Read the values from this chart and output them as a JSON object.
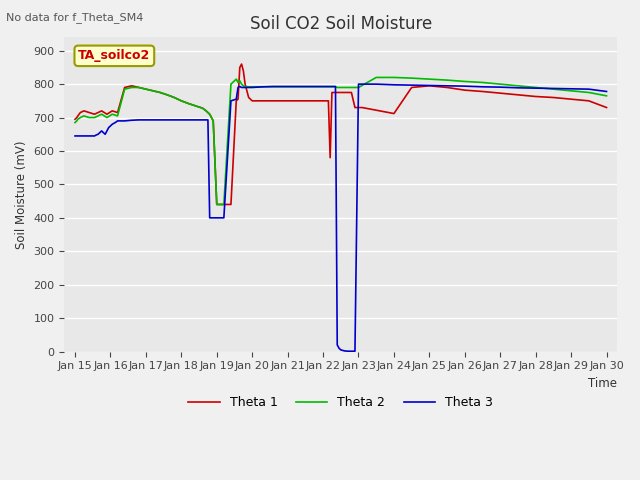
{
  "title": "Soil CO2 Soil Moisture",
  "subtitle": "No data for f_Theta_SM4",
  "ylabel": "Soil Moisture (mV)",
  "xlabel": "Time",
  "box_label": "TA_soilco2",
  "ylim": [
    0,
    940
  ],
  "yticks": [
    0,
    100,
    200,
    300,
    400,
    500,
    600,
    700,
    800,
    900
  ],
  "xtick_labels": [
    "Jan 15",
    "Jan 16",
    "Jan 17",
    "Jan 18",
    "Jan 19",
    "Jan 20",
    "Jan 21",
    "Jan 22",
    "Jan 23",
    "Jan 24",
    "Jan 25",
    "Jan 26",
    "Jan 27",
    "Jan 28",
    "Jan 29",
    "Jan 30"
  ],
  "line_colors": [
    "#cc0000",
    "#00bb00",
    "#0000cc"
  ],
  "line_labels": [
    "Theta 1",
    "Theta 2",
    "Theta 3"
  ],
  "theta1_x": [
    0.0,
    0.05,
    0.08,
    0.15,
    0.25,
    0.4,
    0.55,
    0.75,
    0.9,
    1.05,
    1.2,
    1.4,
    1.6,
    1.8,
    2.0,
    2.2,
    2.4,
    2.6,
    2.8,
    3.0,
    3.2,
    3.4,
    3.6,
    3.7,
    3.75,
    3.8,
    3.85,
    3.9,
    4.0,
    4.2,
    4.4,
    4.55,
    4.6,
    4.65,
    4.7,
    4.75,
    4.8,
    4.9,
    5.0,
    5.3,
    5.6,
    5.9,
    6.2,
    6.5,
    6.8,
    7.0,
    7.1,
    7.15,
    7.2,
    7.25,
    7.3,
    7.35,
    7.4,
    7.45,
    7.5,
    7.6,
    7.7,
    7.8,
    7.9,
    8.0,
    8.1,
    8.2,
    8.3,
    8.4,
    8.5,
    8.6,
    8.7,
    8.8,
    8.9,
    9.0,
    9.5,
    10.0,
    10.5,
    11.0,
    11.5,
    12.0,
    12.5,
    13.0,
    13.5,
    14.0,
    14.5,
    15.0
  ],
  "theta1_y": [
    695,
    700,
    705,
    715,
    720,
    715,
    710,
    720,
    710,
    720,
    715,
    790,
    795,
    790,
    785,
    780,
    775,
    768,
    760,
    750,
    742,
    735,
    728,
    720,
    715,
    710,
    700,
    690,
    440,
    440,
    440,
    750,
    755,
    850,
    860,
    840,
    800,
    760,
    750,
    750,
    750,
    750,
    750,
    750,
    750,
    750,
    750,
    750,
    580,
    775,
    775,
    775,
    775,
    775,
    775,
    775,
    775,
    775,
    730,
    730,
    730,
    728,
    726,
    724,
    722,
    720,
    718,
    716,
    714,
    712,
    790,
    795,
    790,
    782,
    778,
    773,
    768,
    763,
    760,
    755,
    750,
    730
  ],
  "theta2_x": [
    0.0,
    0.05,
    0.08,
    0.15,
    0.25,
    0.4,
    0.55,
    0.75,
    0.9,
    1.05,
    1.2,
    1.4,
    1.6,
    1.8,
    2.0,
    2.2,
    2.4,
    2.6,
    2.8,
    3.0,
    3.2,
    3.4,
    3.6,
    3.7,
    3.75,
    3.8,
    3.85,
    3.9,
    4.0,
    4.2,
    4.4,
    4.5,
    4.55,
    4.6,
    4.65,
    4.7,
    4.75,
    4.8,
    4.9,
    5.0,
    5.3,
    5.6,
    5.9,
    6.2,
    6.5,
    6.8,
    7.0,
    7.1,
    7.15,
    7.2,
    7.25,
    7.3,
    7.35,
    7.4,
    7.45,
    7.5,
    7.6,
    7.7,
    7.8,
    7.9,
    8.0,
    8.5,
    9.0,
    9.5,
    10.0,
    10.5,
    11.0,
    11.5,
    12.0,
    12.5,
    13.0,
    13.5,
    14.0,
    14.5,
    15.0
  ],
  "theta2_y": [
    685,
    690,
    695,
    700,
    705,
    700,
    700,
    710,
    700,
    710,
    705,
    785,
    790,
    790,
    785,
    780,
    775,
    768,
    760,
    750,
    742,
    735,
    728,
    720,
    715,
    710,
    700,
    690,
    440,
    440,
    800,
    810,
    815,
    805,
    810,
    800,
    795,
    793,
    792,
    792,
    792,
    792,
    792,
    792,
    792,
    792,
    792,
    792,
    792,
    792,
    792,
    792,
    792,
    790,
    790,
    790,
    790,
    790,
    790,
    790,
    790,
    820,
    820,
    818,
    815,
    812,
    808,
    805,
    800,
    795,
    790,
    785,
    780,
    775,
    765
  ],
  "theta3_x": [
    0.0,
    0.05,
    0.08,
    0.1,
    0.15,
    0.2,
    0.25,
    0.3,
    0.35,
    0.4,
    0.45,
    0.5,
    0.55,
    0.6,
    0.65,
    0.7,
    0.75,
    0.8,
    0.85,
    0.9,
    0.95,
    1.0,
    1.05,
    1.1,
    1.15,
    1.2,
    1.4,
    1.6,
    1.8,
    2.0,
    2.2,
    2.4,
    2.6,
    2.8,
    3.0,
    3.2,
    3.4,
    3.6,
    3.7,
    3.75,
    3.8,
    4.0,
    4.2,
    4.4,
    4.55,
    4.6,
    4.65,
    4.7,
    4.8,
    4.9,
    5.0,
    5.3,
    5.6,
    5.9,
    6.2,
    6.5,
    6.8,
    7.0,
    7.1,
    7.15,
    7.2,
    7.25,
    7.3,
    7.35,
    7.4,
    7.45,
    7.5,
    7.6,
    7.7,
    7.8,
    7.9,
    8.0,
    8.1,
    8.15,
    8.2,
    8.3,
    8.4,
    8.5,
    9.0,
    9.5,
    10.0,
    10.5,
    11.0,
    11.5,
    12.0,
    12.5,
    13.0,
    13.5,
    14.0,
    14.5,
    15.0
  ],
  "theta3_y": [
    645,
    645,
    645,
    645,
    645,
    645,
    645,
    645,
    645,
    645,
    645,
    645,
    645,
    648,
    650,
    655,
    660,
    655,
    650,
    660,
    670,
    675,
    680,
    683,
    686,
    690,
    690,
    692,
    693,
    693,
    693,
    693,
    693,
    693,
    693,
    693,
    693,
    693,
    693,
    693,
    400,
    400,
    400,
    750,
    755,
    790,
    793,
    790,
    790,
    790,
    790,
    792,
    793,
    793,
    793,
    793,
    793,
    793,
    793,
    793,
    793,
    793,
    793,
    793,
    20,
    10,
    5,
    2,
    1,
    1,
    1,
    800,
    800,
    800,
    800,
    800,
    800,
    800,
    798,
    797,
    796,
    795,
    794,
    792,
    791,
    789,
    788,
    787,
    786,
    785,
    778
  ]
}
